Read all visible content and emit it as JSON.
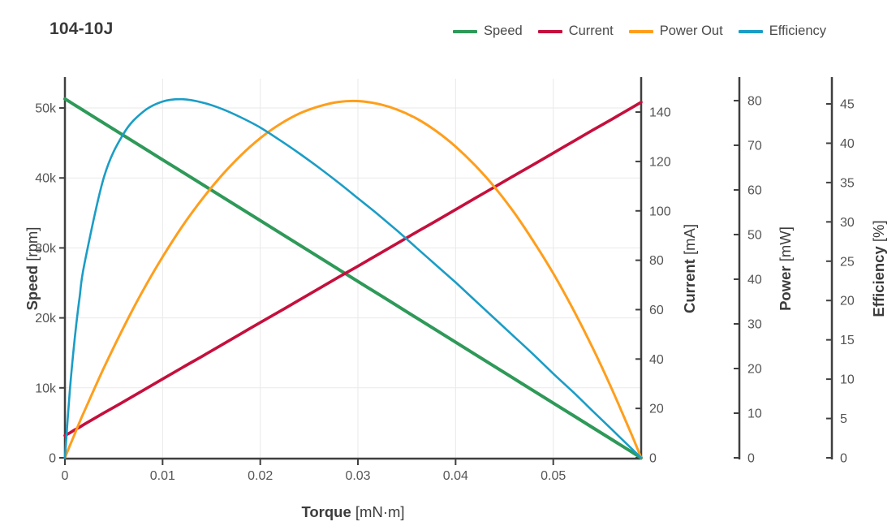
{
  "title": "104-10J",
  "legend": {
    "position": "top-right",
    "items": [
      {
        "label": "Speed",
        "color": "#2E9958"
      },
      {
        "label": "Current",
        "color": "#C50F3C"
      },
      {
        "label": "Power Out",
        "color": "#FF9E1B"
      },
      {
        "label": "Efficiency",
        "color": "#1A9DC6"
      }
    ]
  },
  "colors": {
    "background": "#FFFFFF",
    "axis_line": "#3F3F3F",
    "tick_text": "#555555",
    "title_text": "#3A3A3A",
    "gridline": "#E9E9E9"
  },
  "chart_data": {
    "type": "line",
    "title": "104-10J",
    "grid": {
      "vertical_from": "x",
      "horizontal_from": "speed",
      "visible": true
    },
    "legend_position": "top-right",
    "x_axis": {
      "label": "Torque",
      "unit": "[mN·m]",
      "min": 0,
      "max": 0.059,
      "ticks": [
        0,
        0.01,
        0.02,
        0.03,
        0.04,
        0.05
      ]
    },
    "y_axes": [
      {
        "id": "speed",
        "label": "Speed",
        "unit": "[rpm]",
        "min": 0,
        "max": 54180,
        "ticks": [
          0,
          10000,
          20000,
          30000,
          40000,
          50000
        ],
        "tick_style": "thousands-k"
      },
      {
        "id": "current",
        "label": "Current",
        "unit": "[mA]",
        "min": 0,
        "max": 153.5,
        "ticks": [
          0,
          20,
          40,
          60,
          80,
          100,
          120,
          140
        ],
        "tick_style": "plain"
      },
      {
        "id": "power",
        "label": "Power",
        "unit": "[mW]",
        "min": 0,
        "max": 84.9,
        "ticks": [
          0,
          10,
          20,
          30,
          40,
          50,
          60,
          70,
          80
        ],
        "tick_style": "plain"
      },
      {
        "id": "efficiency",
        "label": "Efficiency",
        "unit": "[%]",
        "min": 0,
        "max": 48.2,
        "ticks": [
          0,
          5,
          10,
          15,
          20,
          25,
          30,
          35,
          40,
          45
        ],
        "tick_style": "plain"
      }
    ],
    "x": [
      0,
      0.0005,
      0.001,
      0.0015,
      0.002,
      0.004,
      0.006,
      0.008,
      0.01,
      0.012,
      0.014,
      0.016,
      0.018,
      0.02,
      0.022,
      0.024,
      0.026,
      0.028,
      0.03,
      0.032,
      0.034,
      0.036,
      0.038,
      0.04,
      0.042,
      0.044,
      0.046,
      0.048,
      0.05,
      0.052,
      0.054,
      0.056,
      0.058,
      0.059
    ],
    "series": [
      {
        "name": "Speed",
        "axis": "speed",
        "color": "#2E9958",
        "values": [
          51300,
          50870,
          50430,
          50000,
          49560,
          47820,
          46080,
          44340,
          42600,
          40870,
          39130,
          37390,
          35650,
          33910,
          32170,
          30430,
          28690,
          26950,
          25210,
          23480,
          21740,
          20000,
          18260,
          16520,
          14780,
          13040,
          11300,
          9560,
          7820,
          6090,
          4350,
          2610,
          870,
          0
        ]
      },
      {
        "name": "Current",
        "axis": "current",
        "color": "#C50F3C",
        "values": [
          9.0,
          10.1,
          11.3,
          12.4,
          13.6,
          18.2,
          22.7,
          27.3,
          31.9,
          36.5,
          41.0,
          45.6,
          50.2,
          54.8,
          59.3,
          63.9,
          68.5,
          73.1,
          77.6,
          82.2,
          86.8,
          91.4,
          95.9,
          100.5,
          105.1,
          109.7,
          114.3,
          118.8,
          123.4,
          128.0,
          132.6,
          137.1,
          141.7,
          144.0
        ]
      },
      {
        "name": "Power Out",
        "axis": "power",
        "color": "#FF9E1B",
        "values": [
          0,
          2.7,
          5.3,
          8.0,
          10.5,
          20.2,
          29.2,
          37.5,
          45.0,
          51.8,
          57.8,
          63.1,
          67.7,
          71.6,
          74.7,
          77.1,
          78.7,
          79.7,
          79.9,
          79.3,
          78.0,
          76.0,
          73.2,
          69.7,
          65.5,
          60.6,
          54.9,
          48.4,
          41.3,
          33.4,
          24.8,
          15.4,
          5.3,
          0
        ]
      },
      {
        "name": "Efficiency",
        "axis": "efficiency",
        "color": "#1A9DC6",
        "values": [
          0,
          8.5,
          15.1,
          20.4,
          24.7,
          35.7,
          41.2,
          44.0,
          45.3,
          45.6,
          45.2,
          44.4,
          43.3,
          42.0,
          40.4,
          38.7,
          36.9,
          35.0,
          33.0,
          31.0,
          28.9,
          26.7,
          24.5,
          22.3,
          20.0,
          17.7,
          15.4,
          13.1,
          10.7,
          8.4,
          6.0,
          3.6,
          1.2,
          0
        ]
      }
    ]
  }
}
